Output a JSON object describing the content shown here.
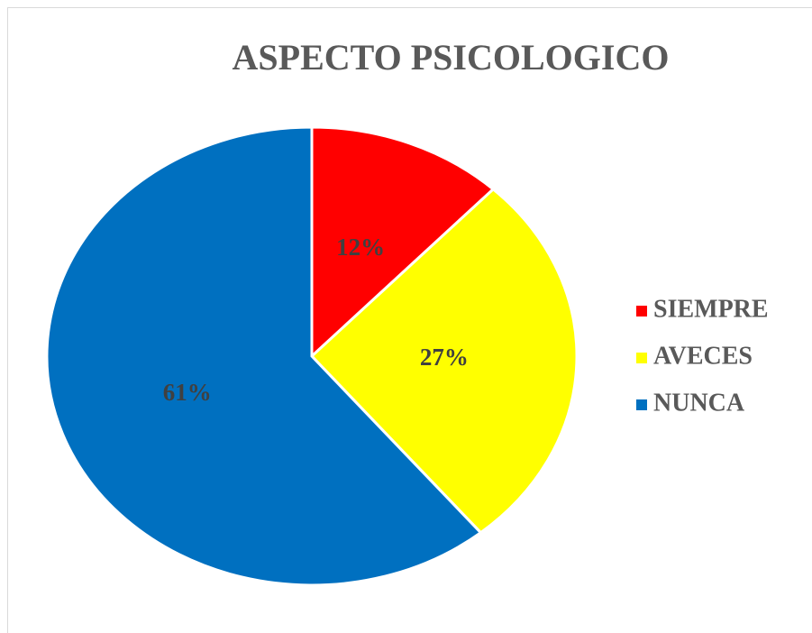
{
  "chart_data": {
    "type": "pie",
    "title": "ASPECTO PSICOLOGICO",
    "categories": [
      "SIEMPRE",
      "AVECES",
      "NUNCA"
    ],
    "values": [
      12,
      27,
      61
    ],
    "value_labels": [
      "12%",
      "27%",
      "61%"
    ],
    "colors": [
      "#ff0000",
      "#ffff00",
      "#0070c0"
    ],
    "legend": "right"
  }
}
